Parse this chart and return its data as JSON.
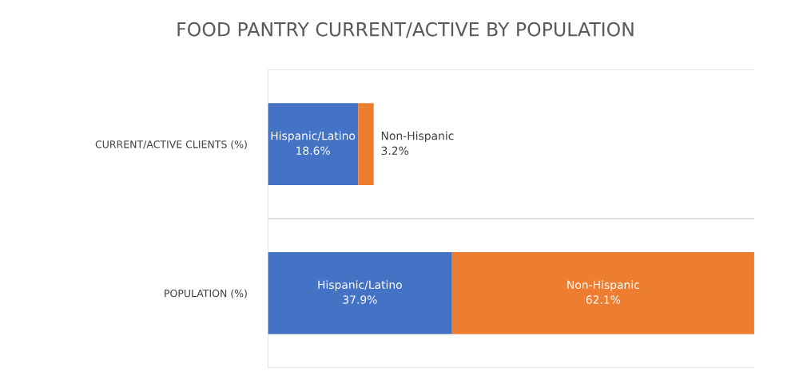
{
  "chart_data": {
    "type": "bar",
    "title": "FOOD PANTRY CURRENT/ACTIVE BY POPULATION",
    "categories": [
      "CURRENT/ACTIVE CLIENTS (%)",
      "POPULATION (%)"
    ],
    "orientation": "horizontal",
    "stacked": true,
    "series": [
      {
        "name": "Hispanic/Latino",
        "color": "#4472c4",
        "values": [
          18.6,
          37.9
        ],
        "value_labels": [
          "18.6%",
          "37.9%"
        ]
      },
      {
        "name": "Non-Hispanic",
        "color": "#ed7d31",
        "values": [
          3.2,
          62.1
        ],
        "value_labels": [
          "3.2%",
          "62.1%"
        ]
      }
    ]
  }
}
